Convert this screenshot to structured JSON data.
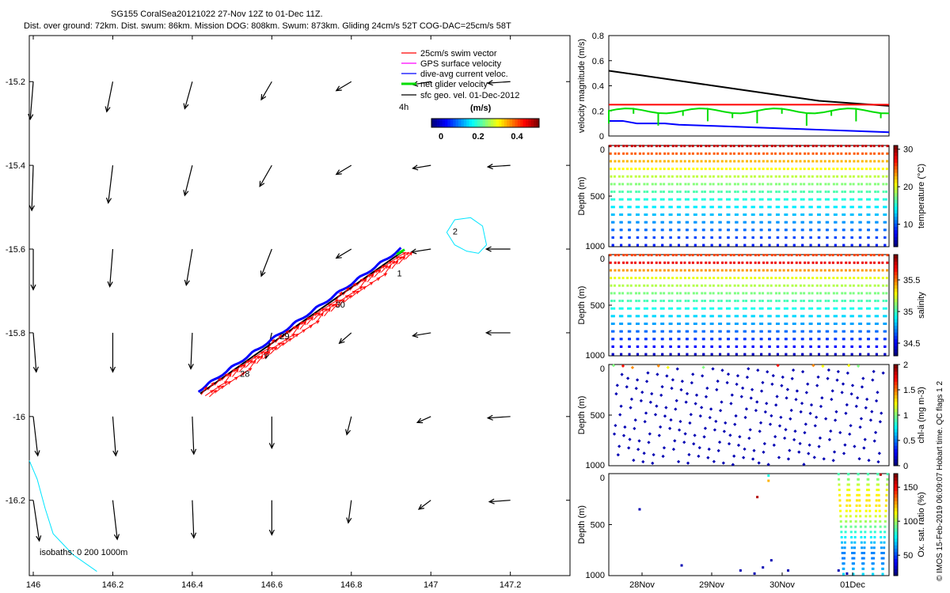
{
  "header": {
    "line1": "SG155 CoralSea20121022 27-Nov 12Z to 01-Dec 11Z.",
    "line2": "Dist. over ground: 72km. Dist. swum: 86km. Mission DOG: 808km. Swum: 873km. Gliding 24cm/s 52T COG-DAC=25cm/s 58T"
  },
  "side_note": "© IMOS 15-Feb-2019 06:09:07 Hobart time. QC flags 1  2",
  "colors": {
    "swim": "#ff0000",
    "gps": "#ff00ff",
    "dac": "#0000ff",
    "net": "#00dd00",
    "geo": "#000000",
    "isobath": "#00e5ff"
  },
  "chart_data": [
    {
      "type": "map",
      "xlim": [
        145.99,
        147.35
      ],
      "ylim": [
        -16.38,
        -15.09
      ],
      "xticks": [
        "146",
        "146.2",
        "146.4",
        "146.6",
        "146.8",
        "147",
        "147.2"
      ],
      "yticks": [
        "-15.2",
        "-15.4",
        "-15.6",
        "-15.8",
        "-16",
        "-16.2"
      ],
      "legend": {
        "items": [
          "25cm/s swim vector",
          "GPS surface velocity",
          "dive-avg current veloc.",
          "net glider velocity",
          "sfc geo. vel. 01-Dec-2012"
        ],
        "duration": "4h",
        "colorbar_label": "(m/s)",
        "colorbar_ticks": [
          "0",
          "0.2",
          "0.4"
        ]
      },
      "isobaths_label": "isobaths: 0   200  1000m",
      "day_labels": [
        {
          "text": "28",
          "lon": 146.52,
          "lat": -15.905
        },
        {
          "text": "29",
          "lon": 146.62,
          "lat": -15.815
        },
        {
          "text": "30",
          "lon": 146.76,
          "lat": -15.74
        },
        {
          "text": "1",
          "lon": 146.915,
          "lat": -15.665
        },
        {
          "text": "2",
          "lon": 147.055,
          "lat": -15.565
        }
      ],
      "track_start": [
        146.42,
        -15.945
      ],
      "track_end": [
        146.93,
        -15.605
      ],
      "geo_vectors": {
        "lons": [
          146.0,
          146.2,
          146.4,
          146.6,
          146.8,
          147.0,
          147.2
        ],
        "lats": [
          -15.2,
          -15.4,
          -15.6,
          -15.8,
          -16.0,
          -16.2
        ],
        "u": [
          [
            -0.02,
            -0.04,
            -0.05,
            -0.07,
            -0.1,
            -0.12,
            -0.15
          ],
          [
            -0.01,
            -0.03,
            -0.05,
            -0.08,
            -0.1,
            -0.12,
            -0.15
          ],
          [
            0.0,
            -0.02,
            -0.04,
            -0.07,
            -0.1,
            -0.13,
            -0.16
          ],
          [
            0.02,
            0.0,
            -0.01,
            -0.04,
            -0.08,
            -0.12,
            -0.16
          ],
          [
            0.03,
            0.02,
            0.01,
            0.0,
            -0.03,
            -0.09,
            -0.15
          ],
          [
            0.04,
            0.03,
            0.01,
            0.0,
            -0.02,
            -0.08,
            -0.14
          ]
        ],
        "v": [
          [
            -0.25,
            -0.2,
            -0.18,
            -0.12,
            -0.06,
            -0.02,
            -0.01
          ],
          [
            -0.3,
            -0.25,
            -0.2,
            -0.14,
            -0.06,
            -0.02,
            -0.01
          ],
          [
            -0.27,
            -0.25,
            -0.24,
            -0.18,
            -0.06,
            -0.02,
            0.0
          ],
          [
            -0.26,
            -0.26,
            -0.24,
            -0.17,
            -0.07,
            -0.02,
            0.0
          ],
          [
            -0.26,
            -0.26,
            -0.25,
            -0.21,
            -0.12,
            -0.04,
            -0.01
          ],
          [
            -0.27,
            -0.26,
            -0.25,
            -0.23,
            -0.15,
            -0.06,
            -0.01
          ]
        ]
      }
    },
    {
      "type": "line",
      "xlim": [
        0,
        4.0
      ],
      "ylim": [
        0,
        0.8
      ],
      "ylabel": "velocity magnitude (m/s)",
      "yticks": [
        "0",
        "0.2",
        "0.4",
        "0.6",
        "0.8"
      ],
      "series": [
        {
          "color": "#000000",
          "x": [
            0,
            0.5,
            1,
            1.5,
            2,
            2.5,
            3,
            3.5,
            4.0
          ],
          "y": [
            0.52,
            0.48,
            0.44,
            0.4,
            0.36,
            0.32,
            0.28,
            0.26,
            0.24
          ]
        },
        {
          "color": "#ff0000",
          "x": [
            0,
            4.0
          ],
          "y": [
            0.25,
            0.25
          ]
        },
        {
          "color": "#0000ff",
          "x": [
            0,
            0.2,
            0.4,
            0.6,
            0.8,
            1.0,
            1.5,
            2.0,
            2.5,
            3.0,
            3.5,
            4.0
          ],
          "y": [
            0.12,
            0.12,
            0.1,
            0.1,
            0.1,
            0.09,
            0.08,
            0.07,
            0.06,
            0.05,
            0.04,
            0.03
          ]
        },
        {
          "color": "#00dd00",
          "x": [
            0,
            0.5,
            1.0,
            1.5,
            2.0,
            2.5,
            3.0,
            3.5,
            4.0
          ],
          "y": [
            0.2,
            0.22,
            0.18,
            0.2,
            0.2,
            0.22,
            0.2,
            0.22,
            0.22
          ]
        }
      ]
    },
    {
      "type": "section",
      "ylabel": "Depth (m)",
      "cbar_label": "temperature (°C)",
      "ylim": [
        0,
        1000
      ],
      "yticks": [
        "0",
        "500",
        "1000"
      ],
      "clim": [
        4,
        31
      ],
      "cticks": [
        "10",
        "20",
        "30"
      ],
      "dives": 34
    },
    {
      "type": "section",
      "ylabel": "Depth (m)",
      "cbar_label": "salinity",
      "ylim": [
        0,
        1000
      ],
      "yticks": [
        "0",
        "500",
        "1000"
      ],
      "clim": [
        34.3,
        35.9
      ],
      "cticks": [
        "34.5",
        "35",
        "35.5"
      ],
      "dives": 34
    },
    {
      "type": "scatter",
      "ylabel": "Depth (m)",
      "cbar_label": "chl-a (mg m-3)",
      "ylim": [
        0,
        1000
      ],
      "yticks": [
        "0",
        "500",
        "1000"
      ],
      "clim": [
        0,
        2
      ],
      "cticks": [
        "0",
        "0.5",
        "1",
        "1.5",
        "2"
      ]
    },
    {
      "type": "scatter",
      "ylabel": "Depth (m)",
      "cbar_label": "Ox. sat. ratio (%)",
      "ylim": [
        0,
        1000
      ],
      "yticks": [
        "0",
        "500",
        "1000"
      ],
      "clim": [
        20,
        170
      ],
      "cticks": [
        "50",
        "100",
        "150"
      ],
      "xticks": [
        "28Nov",
        "29Nov",
        "30Nov",
        "01Dec"
      ]
    }
  ]
}
